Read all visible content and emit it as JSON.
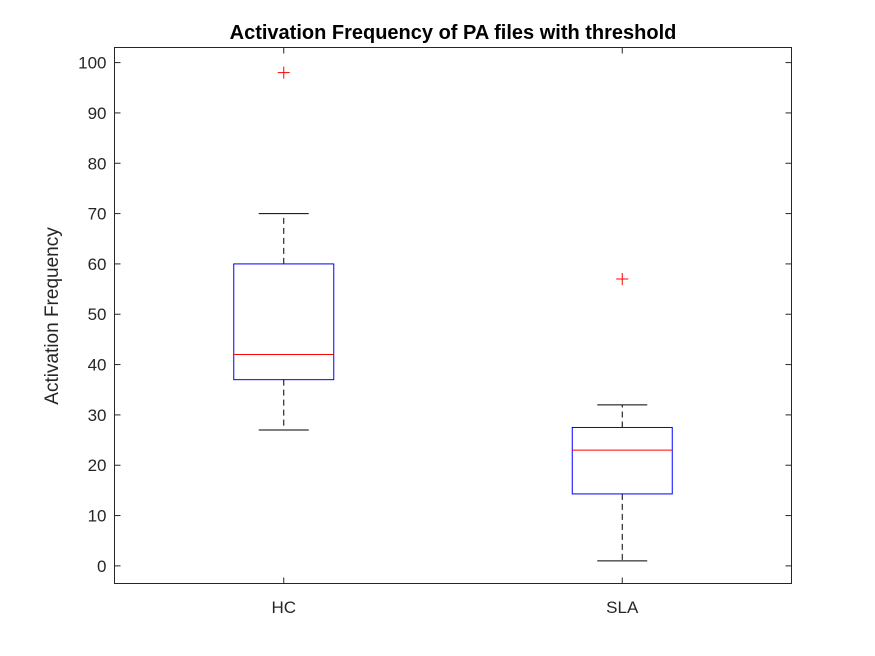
{
  "chart_data": {
    "type": "box",
    "title": "Activation Frequency of PA files with threshold",
    "xlabel": "",
    "ylabel": "Activation Frequency",
    "categories": [
      "HC",
      "SLA"
    ],
    "ylim": [
      -3.5,
      103
    ],
    "yticks": [
      0,
      10,
      20,
      30,
      40,
      50,
      60,
      70,
      80,
      90,
      100
    ],
    "grid": false,
    "series": [
      {
        "category": "HC",
        "whisker_low": 27,
        "q1": 37,
        "median": 42,
        "q3": 60,
        "whisker_high": 70,
        "outliers": [
          98
        ]
      },
      {
        "category": "SLA",
        "whisker_low": 1,
        "q1": 14.3,
        "median": 23,
        "q3": 27.5,
        "whisker_high": 32,
        "outliers": [
          57
        ]
      }
    ],
    "colors": {
      "box": "#0000ff",
      "median": "#ff0000",
      "whisker": "#000000",
      "outlier": "#ff0000",
      "axis": "#262626"
    }
  }
}
